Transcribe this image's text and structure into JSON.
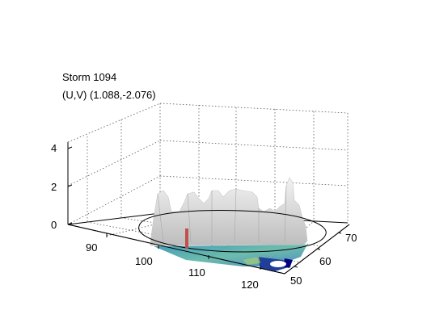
{
  "figure": {
    "title_line1": "Storm 1094",
    "title_line2": "(U,V) (1.088,-2.076)"
  },
  "chart_data": {
    "type": "surface3d",
    "x_axis": {
      "ticks": [
        90,
        100,
        110,
        120
      ],
      "range": [
        82,
        122
      ]
    },
    "y_axis": {
      "ticks": [
        50,
        60,
        70
      ],
      "range": [
        46,
        76
      ]
    },
    "z_axis": {
      "ticks": [
        0,
        2,
        4
      ],
      "range": [
        0,
        4.5
      ]
    },
    "grid": true,
    "surface_color": "#d9d9d9",
    "floor_colormap": [
      "#000080",
      "#1f4fa8",
      "#2e8fb0",
      "#5cb5a4",
      "#9cc97e"
    ],
    "marker_color": "#c0504d",
    "approx_ridge_heights": [
      {
        "x": 93,
        "y": 66,
        "z": 1.7
      },
      {
        "x": 97,
        "y": 67,
        "z": 1.1
      },
      {
        "x": 101,
        "y": 69,
        "z": 1.6
      },
      {
        "x": 106,
        "y": 70,
        "z": 1.4
      },
      {
        "x": 111,
        "y": 70,
        "z": 1.5
      },
      {
        "x": 116,
        "y": 70,
        "z": 1.2
      },
      {
        "x": 119,
        "y": 67,
        "z": 2.2
      },
      {
        "x": 120,
        "y": 62,
        "z": 1.5
      }
    ],
    "vector_marker": {
      "x": 100,
      "y": 60,
      "z": 0.9
    }
  }
}
